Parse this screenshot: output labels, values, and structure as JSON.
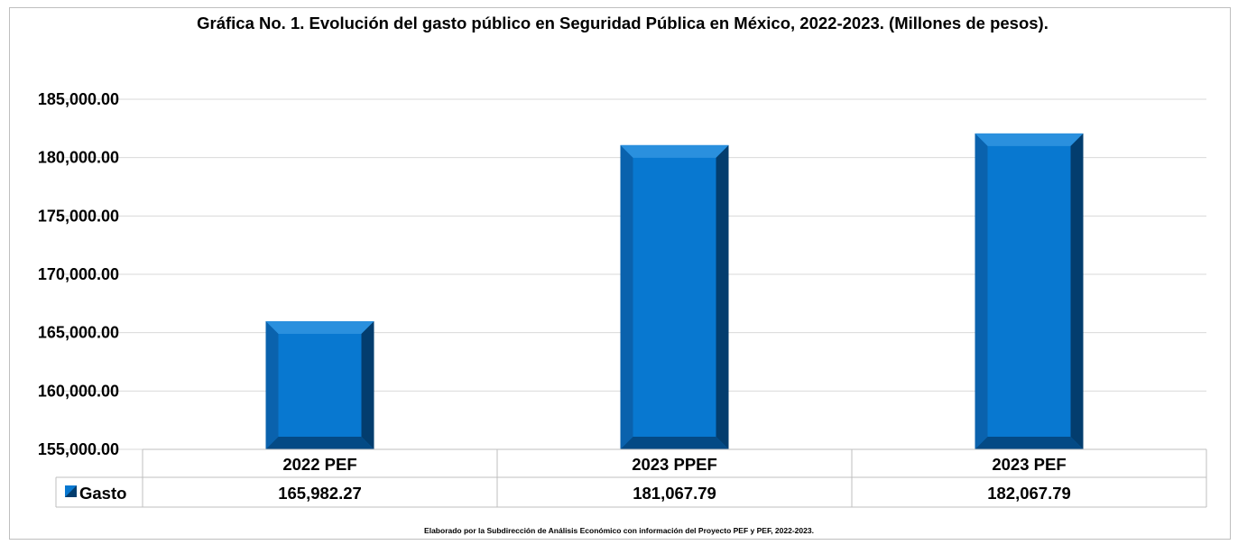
{
  "chart_data": {
    "type": "bar",
    "title": "Gráfica No. 1. Evolución del gasto público en Seguridad Pública en México, 2022-2023. (Millones de pesos).",
    "categories": [
      "2022 PEF",
      "2023 PPEF",
      "2023 PEF"
    ],
    "series": [
      {
        "name": "Gasto",
        "values": [
          165982.27,
          181067.79,
          182067.79
        ],
        "value_labels": [
          "165,982.27",
          "181,067.79",
          "182,067.79"
        ],
        "color": "#0878d0"
      }
    ],
    "ylim": [
      155000,
      185000
    ],
    "yticks": [
      155000,
      160000,
      165000,
      170000,
      175000,
      180000,
      185000
    ],
    "ytick_labels": [
      "155,000.00",
      "160,000.00",
      "165,000.00",
      "170,000.00",
      "175,000.00",
      "180,000.00",
      "185,000.00"
    ],
    "grid": true,
    "legend": "data-table"
  },
  "source_note": "Elaborado por la Subdirección de Análisis Económico con información del Proyecto PEF y PEF, 2022-2023."
}
